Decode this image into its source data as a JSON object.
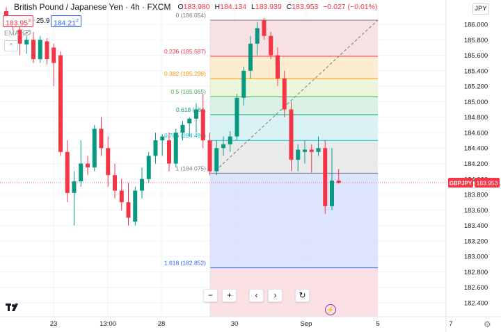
{
  "header": {
    "symbol_title": "British Pound / Japanese Yen · 4h · FXCM",
    "ohlc": [
      {
        "k": "O",
        "v": "183.980"
      },
      {
        "k": "H",
        "v": "184.134"
      },
      {
        "k": "L",
        "v": "183.939"
      },
      {
        "k": "C",
        "v": "183.953"
      },
      {
        "k": "",
        "v": "−0.027 (−0.01%)"
      }
    ],
    "sell_price": "183.95",
    "sell_price_suffix": "3",
    "spread": "25.9",
    "buy_price": "184.21",
    "buy_price_suffix": "2",
    "indicator": "EMA",
    "currency": "JPY"
  },
  "price_axis": {
    "ticks": [
      "186.000",
      "185.800",
      "185.600",
      "185.400",
      "185.200",
      "185.000",
      "184.800",
      "184.600",
      "184.400",
      "184.200",
      "184.000",
      "183.800",
      "183.600",
      "183.400",
      "183.200",
      "183.000",
      "182.800",
      "182.600",
      "182.400"
    ],
    "symbol_label": "GBPJPY",
    "current_price": "183.953",
    "current_color": "#f23645"
  },
  "time_axis": {
    "labels": [
      "23",
      "13:00",
      "28",
      "30",
      "Sep",
      "5",
      "7"
    ]
  },
  "fib_levels": [
    {
      "label": "0 (186.054)",
      "ratio": 0,
      "price": 186.054,
      "color": "#787b86",
      "fill": "#f7dcde"
    },
    {
      "label": "0.236 (185.587)",
      "ratio": 0.236,
      "price": 185.587,
      "color": "#f23645",
      "fill": "#fde9c8"
    },
    {
      "label": "0.382 (185.298)",
      "ratio": 0.382,
      "price": 185.298,
      "color": "#ff9800",
      "fill": "#e8f3d6"
    },
    {
      "label": "0.5 (185.065)",
      "ratio": 0.5,
      "price": 185.065,
      "color": "#4caf50",
      "fill": "#d4efe2"
    },
    {
      "label": "0.618 (184.832)",
      "ratio": 0.618,
      "price": 184.832,
      "color": "#089981",
      "fill": "#d2f1f3"
    },
    {
      "label": "0.786 (184.499)",
      "ratio": 0.786,
      "price": 184.499,
      "color": "#00bcd4",
      "fill": "#e5e6e8"
    },
    {
      "label": "1 (184.075)",
      "ratio": 1,
      "price": 184.075,
      "color": "#787b86",
      "fill": "#d6e0fb"
    },
    {
      "label": "1.618 (182.852)",
      "ratio": 1.618,
      "price": 182.852,
      "color": "#2962ff",
      "fill": "#fadbdf"
    }
  ],
  "fib_visible_labels": {
    "0.618": "0.618 (184.",
    "0.786": "0.786 (184.499)"
  },
  "chart_data": {
    "type": "candlestick",
    "title": "British Pound / Japanese Yen · 4h · FXCM",
    "ylim": [
      182.3,
      186.2
    ],
    "candles": [
      {
        "o": 186.17,
        "h": 186.22,
        "l": 185.98,
        "c": 186.05
      },
      {
        "o": 186.05,
        "h": 186.1,
        "l": 185.92,
        "c": 186.0
      },
      {
        "o": 185.93,
        "h": 186.0,
        "l": 185.6,
        "c": 185.75
      },
      {
        "o": 185.74,
        "h": 185.85,
        "l": 185.62,
        "c": 185.8
      },
      {
        "o": 185.8,
        "h": 185.9,
        "l": 185.5,
        "c": 185.55
      },
      {
        "o": 185.55,
        "h": 185.85,
        "l": 185.5,
        "c": 185.8
      },
      {
        "o": 185.78,
        "h": 185.82,
        "l": 185.48,
        "c": 185.55
      },
      {
        "o": 185.7,
        "h": 185.75,
        "l": 185.2,
        "c": 185.5
      },
      {
        "o": 185.6,
        "h": 185.65,
        "l": 184.3,
        "c": 184.35
      },
      {
        "o": 184.35,
        "h": 184.5,
        "l": 183.7,
        "c": 183.82
      },
      {
        "o": 183.82,
        "h": 184.1,
        "l": 183.4,
        "c": 183.97
      },
      {
        "o": 183.97,
        "h": 184.5,
        "l": 183.9,
        "c": 184.2
      },
      {
        "o": 184.2,
        "h": 184.3,
        "l": 184.05,
        "c": 184.15
      },
      {
        "o": 184.15,
        "h": 184.7,
        "l": 184.1,
        "c": 184.65
      },
      {
        "o": 184.65,
        "h": 184.8,
        "l": 184.3,
        "c": 184.4
      },
      {
        "o": 184.4,
        "h": 184.55,
        "l": 183.9,
        "c": 184.05
      },
      {
        "o": 184.05,
        "h": 184.2,
        "l": 183.75,
        "c": 183.85
      },
      {
        "o": 183.85,
        "h": 184.0,
        "l": 183.6,
        "c": 183.7
      },
      {
        "o": 183.7,
        "h": 183.95,
        "l": 183.4,
        "c": 183.5
      },
      {
        "o": 183.45,
        "h": 183.9,
        "l": 183.4,
        "c": 183.85
      },
      {
        "o": 183.85,
        "h": 184.15,
        "l": 183.75,
        "c": 184.0
      },
      {
        "o": 184.0,
        "h": 184.35,
        "l": 183.95,
        "c": 184.3
      },
      {
        "o": 184.3,
        "h": 184.6,
        "l": 184.2,
        "c": 184.5
      },
      {
        "o": 184.5,
        "h": 184.58,
        "l": 184.3,
        "c": 184.55
      },
      {
        "o": 184.5,
        "h": 184.6,
        "l": 184.1,
        "c": 184.2
      },
      {
        "o": 184.2,
        "h": 184.65,
        "l": 184.15,
        "c": 184.6
      },
      {
        "o": 184.6,
        "h": 184.75,
        "l": 184.5,
        "c": 184.7
      },
      {
        "o": 184.72,
        "h": 184.8,
        "l": 184.55,
        "c": 184.78
      },
      {
        "o": 184.78,
        "h": 184.98,
        "l": 184.6,
        "c": 184.9
      },
      {
        "o": 184.9,
        "h": 185.1,
        "l": 184.4,
        "c": 184.5
      },
      {
        "o": 184.5,
        "h": 184.6,
        "l": 184.05,
        "c": 184.1
      },
      {
        "o": 184.1,
        "h": 184.5,
        "l": 184.05,
        "c": 184.4
      },
      {
        "o": 184.4,
        "h": 184.55,
        "l": 184.3,
        "c": 184.45
      },
      {
        "o": 184.45,
        "h": 184.62,
        "l": 184.35,
        "c": 184.55
      },
      {
        "o": 184.55,
        "h": 185.1,
        "l": 184.5,
        "c": 185.05
      },
      {
        "o": 185.05,
        "h": 185.45,
        "l": 184.95,
        "c": 185.4
      },
      {
        "o": 185.4,
        "h": 185.85,
        "l": 185.3,
        "c": 185.75
      },
      {
        "o": 185.75,
        "h": 186.03,
        "l": 185.6,
        "c": 185.95
      },
      {
        "o": 186.05,
        "h": 186.08,
        "l": 185.8,
        "c": 185.85
      },
      {
        "o": 185.85,
        "h": 185.9,
        "l": 185.55,
        "c": 185.6
      },
      {
        "o": 185.6,
        "h": 185.7,
        "l": 185.2,
        "c": 185.3
      },
      {
        "o": 185.3,
        "h": 185.4,
        "l": 184.8,
        "c": 184.9
      },
      {
        "o": 184.9,
        "h": 185.0,
        "l": 184.1,
        "c": 184.25
      },
      {
        "o": 184.25,
        "h": 184.45,
        "l": 184.1,
        "c": 184.38
      },
      {
        "o": 184.35,
        "h": 184.5,
        "l": 184.2,
        "c": 184.38
      },
      {
        "o": 184.38,
        "h": 184.45,
        "l": 184.08,
        "c": 184.35
      },
      {
        "o": 184.35,
        "h": 184.55,
        "l": 184.3,
        "c": 184.4
      },
      {
        "o": 184.4,
        "h": 184.5,
        "l": 183.55,
        "c": 183.65
      },
      {
        "o": 183.65,
        "h": 184.4,
        "l": 183.6,
        "c": 183.98
      },
      {
        "o": 183.98,
        "h": 184.13,
        "l": 183.94,
        "c": 183.95
      }
    ],
    "up_color": "#089981",
    "down_color": "#f23645",
    "fib_retracement": {
      "start_price": 184.075,
      "end_price": 186.054
    }
  },
  "toolbar": {
    "zoom_out": "−",
    "zoom_in": "+",
    "scroll_left": "‹",
    "scroll_right": "›",
    "reset": "↻"
  },
  "logo": "17",
  "flash_icon": "flash-icon",
  "settings_icon": "gear-icon"
}
